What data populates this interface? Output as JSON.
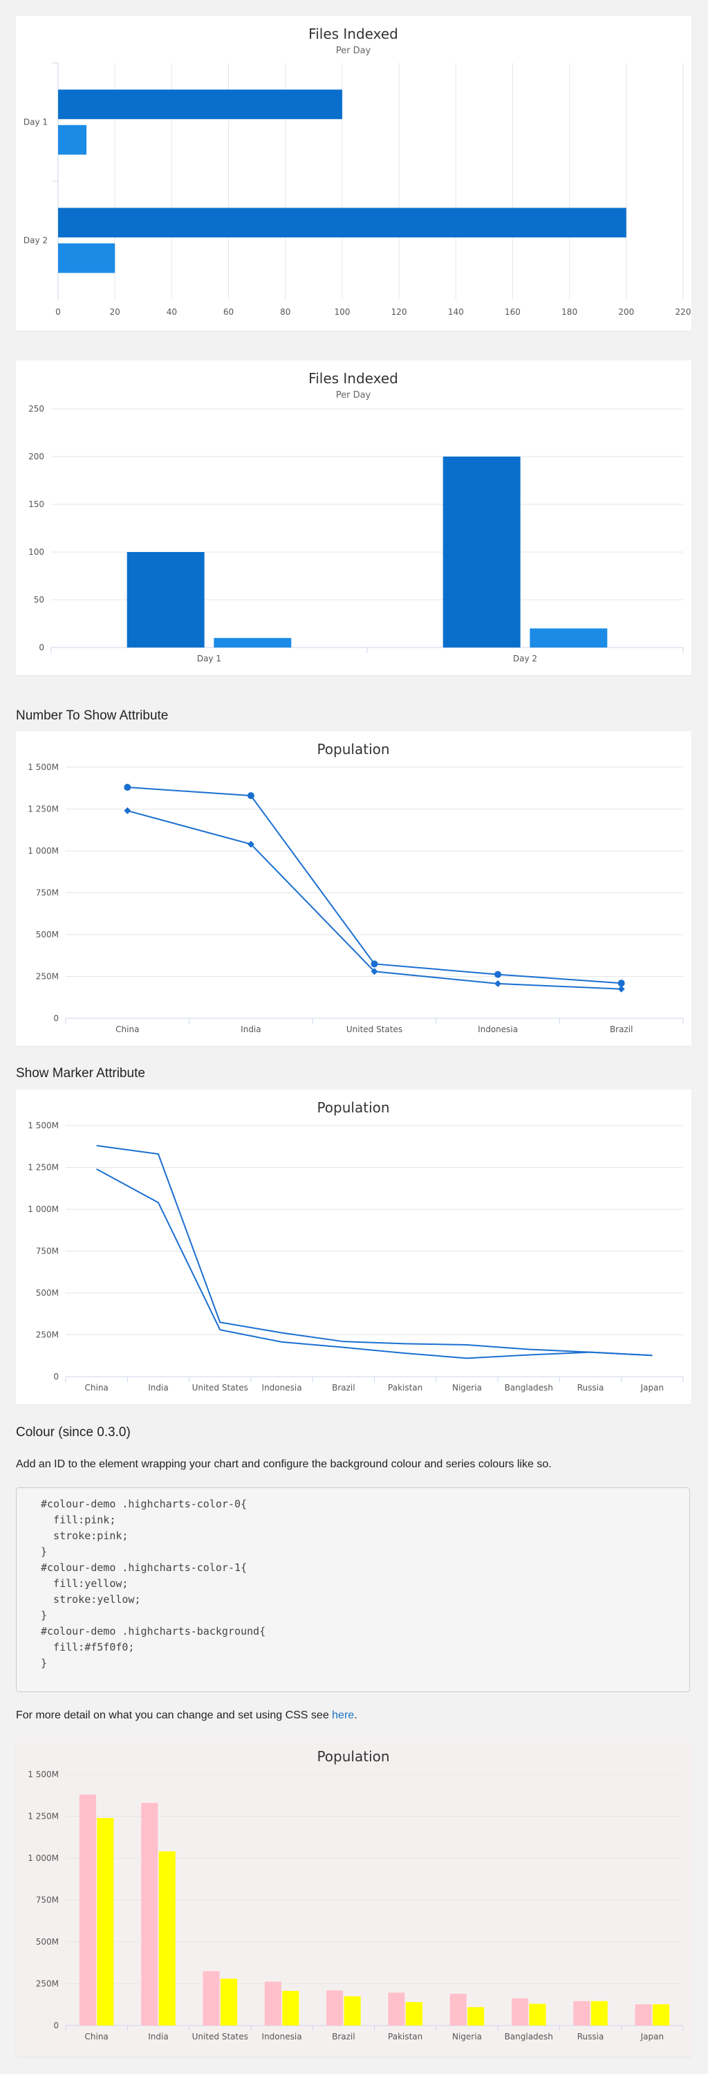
{
  "sections": {
    "heading_number": "Number To Show Attribute",
    "heading_marker": "Show Marker Attribute",
    "heading_colour": "Colour (since 0.3.0)",
    "colour_intro": "Add an ID to the element wrapping your chart and configure the background colour and series colours like so.",
    "detail_prefix": "For more detail on what you can change and set using CSS see ",
    "detail_link": "here",
    "detail_suffix": "."
  },
  "code_lines": [
    "#colour-demo .highcharts-color-0{",
    "  fill:pink;",
    "  stroke:pink;",
    "}",
    "#colour-demo .highcharts-color-1{",
    "  fill:yellow;",
    "  stroke:yellow;",
    "}",
    "#colour-demo .highcharts-background{",
    "  fill:#f5f0f0;",
    "}"
  ],
  "chart_data": [
    {
      "type": "bar",
      "orientation": "horizontal",
      "title": "Files Indexed",
      "subtitle": "Per Day",
      "categories": [
        "Day 1",
        "Day 2"
      ],
      "series": [
        {
          "values": [
            100,
            200
          ],
          "color": "#0a6fcc"
        },
        {
          "values": [
            10,
            20
          ],
          "color": "#1b8be6"
        }
      ],
      "ylim": [
        0,
        220
      ],
      "ticks": [
        "0",
        "20",
        "40",
        "60",
        "80",
        "100",
        "120",
        "140",
        "160",
        "180",
        "200",
        "220"
      ],
      "grid": true
    },
    {
      "type": "bar",
      "orientation": "vertical",
      "title": "Files Indexed",
      "subtitle": "Per Day",
      "categories": [
        "Day 1",
        "Day 2"
      ],
      "series": [
        {
          "values": [
            100,
            200
          ],
          "color": "#0a6fcc"
        },
        {
          "values": [
            10,
            20
          ],
          "color": "#1b8be6"
        }
      ],
      "ylim": [
        0,
        250
      ],
      "ticks": [
        "0",
        "50",
        "100",
        "150",
        "200",
        "250"
      ],
      "grid": true
    },
    {
      "type": "line",
      "title": "Population",
      "categories": [
        "China",
        "India",
        "United States",
        "Indonesia",
        "Brazil"
      ],
      "series": [
        {
          "values": [
            1380,
            1330,
            325,
            262,
            210
          ],
          "color": "#1a6fd0",
          "marker": "circle"
        },
        {
          "values": [
            1240,
            1040,
            280,
            207,
            175
          ],
          "color": "#1a6fd0",
          "marker": "diamond"
        }
      ],
      "ylim": [
        0,
        1500
      ],
      "ticks": [
        "0",
        "250M",
        "500M",
        "750M",
        "1 000M",
        "1 250M",
        "1 500M"
      ],
      "grid": true
    },
    {
      "type": "line",
      "title": "Population",
      "categories": [
        "China",
        "India",
        "United States",
        "Indonesia",
        "Brazil",
        "Pakistan",
        "Nigeria",
        "Bangladesh",
        "Russia",
        "Japan"
      ],
      "series": [
        {
          "values": [
            1380,
            1330,
            325,
            262,
            210,
            197,
            190,
            163,
            146,
            127
          ],
          "color": "#1a6fd0",
          "marker": "none"
        },
        {
          "values": [
            1240,
            1040,
            280,
            207,
            175,
            140,
            110,
            130,
            146,
            127
          ],
          "color": "#1a6fd0",
          "marker": "none"
        }
      ],
      "ylim": [
        0,
        1500
      ],
      "ticks": [
        "0",
        "250M",
        "500M",
        "750M",
        "1 000M",
        "1 250M",
        "1 500M"
      ],
      "grid": true
    },
    {
      "type": "bar",
      "orientation": "vertical",
      "title": "Population",
      "background": "#f5f0f0",
      "categories": [
        "China",
        "India",
        "United States",
        "Indonesia",
        "Brazil",
        "Pakistan",
        "Nigeria",
        "Bangladesh",
        "Russia",
        "Japan"
      ],
      "series": [
        {
          "values": [
            1380,
            1330,
            325,
            262,
            210,
            197,
            190,
            163,
            146,
            127
          ],
          "color": "pink"
        },
        {
          "values": [
            1240,
            1040,
            280,
            207,
            175,
            140,
            110,
            130,
            146,
            127
          ],
          "color": "yellow"
        }
      ],
      "ylim": [
        0,
        1500
      ],
      "ticks": [
        "0",
        "250M",
        "500M",
        "750M",
        "1 000M",
        "1 250M",
        "1 500M"
      ],
      "grid": true
    }
  ]
}
